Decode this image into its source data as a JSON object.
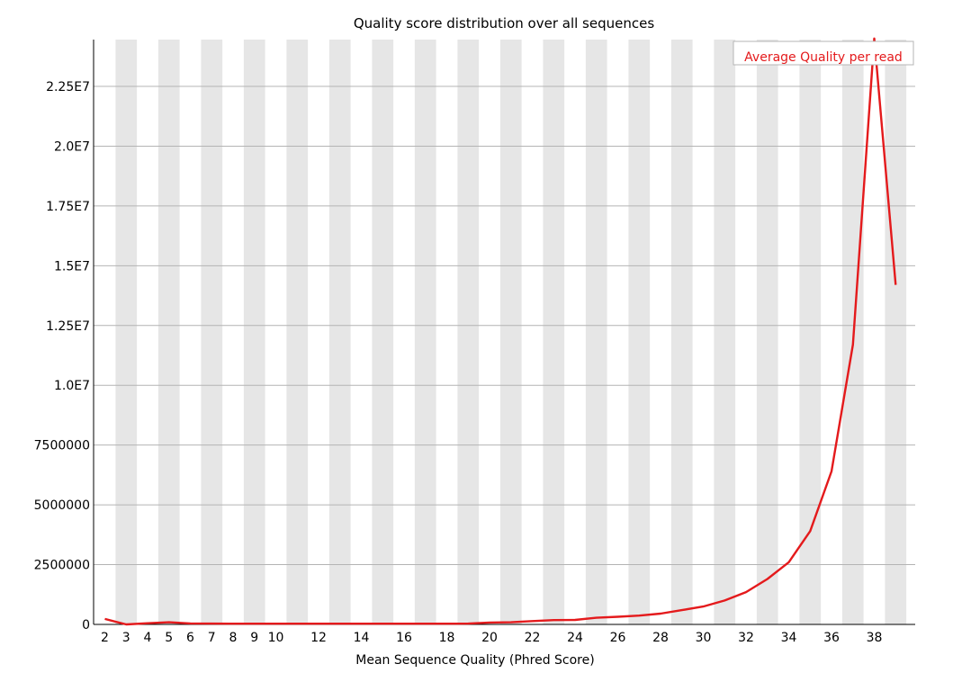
{
  "chart_data": {
    "type": "line",
    "title": "Quality score distribution over all sequences",
    "xlabel": "Mean Sequence Quality (Phred Score)",
    "ylabel": "",
    "xlim": [
      2,
      39
    ],
    "ylim": [
      0,
      24500000
    ],
    "x_tick_labels": [
      "2",
      "3",
      "4",
      "5",
      "6",
      "7",
      "8",
      "9",
      "10",
      "12",
      "14",
      "16",
      "18",
      "20",
      "22",
      "24",
      "26",
      "28",
      "30",
      "32",
      "34",
      "36",
      "38"
    ],
    "y_tick_labels": [
      "0",
      "2500000",
      "5000000",
      "7500000",
      "1.0E7",
      "1.25E7",
      "1.5E7",
      "1.75E7",
      "2.0E7",
      "2.25E7"
    ],
    "y_tick_values": [
      0,
      2500000,
      5000000,
      7500000,
      10000000,
      12500000,
      15000000,
      17500000,
      20000000,
      22500000
    ],
    "grid": true,
    "legend_position": "top-right",
    "series": [
      {
        "name": "Average Quality per read",
        "color": "#e41a1c",
        "x": [
          2,
          3,
          4,
          5,
          6,
          7,
          8,
          9,
          10,
          11,
          12,
          13,
          14,
          15,
          16,
          17,
          18,
          19,
          20,
          21,
          22,
          23,
          24,
          25,
          26,
          27,
          28,
          29,
          30,
          31,
          32,
          33,
          34,
          35,
          36,
          37,
          38,
          39
        ],
        "values": [
          230000,
          0,
          50000,
          90000,
          40000,
          35000,
          30000,
          30000,
          30000,
          30000,
          30000,
          30000,
          30000,
          30000,
          30000,
          30000,
          30000,
          35000,
          80000,
          90000,
          140000,
          180000,
          190000,
          280000,
          320000,
          370000,
          450000,
          600000,
          750000,
          1000000,
          1350000,
          1900000,
          2600000,
          3900000,
          6400000,
          11700000,
          24500000,
          14200000
        ]
      }
    ]
  }
}
